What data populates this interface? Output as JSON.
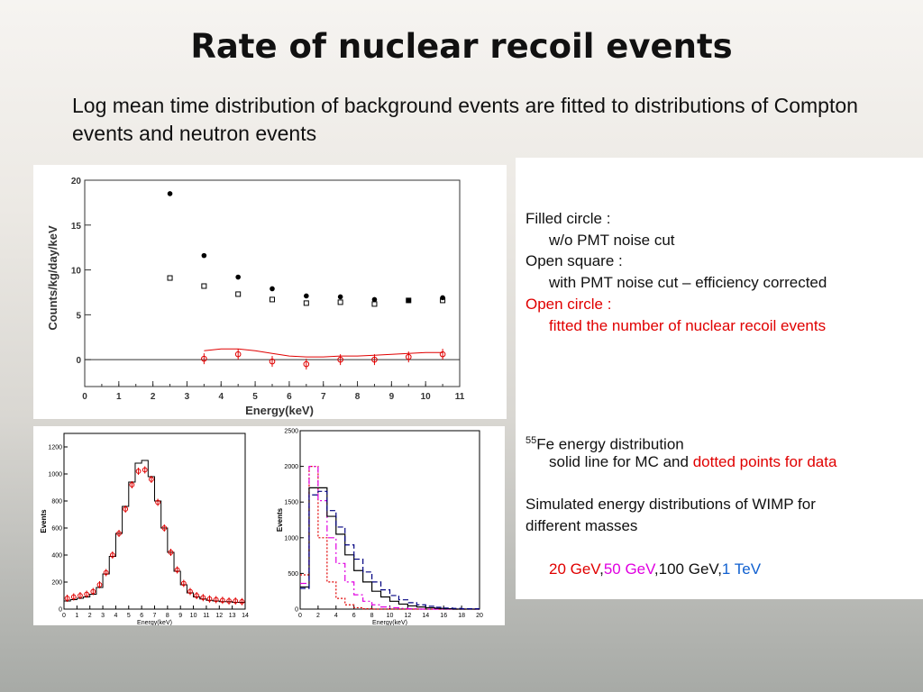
{
  "slide": {
    "title": "Rate of nuclear recoil events",
    "subtitle": "Log mean time distribution of background events are fitted to distributions of Compton events and neutron events"
  },
  "legend_text": {
    "line1": "Filled  circle :",
    "line2": "w/o PMT noise cut",
    "line3": "Open square :",
    "line4": "with PMT noise cut – efficiency corrected",
    "line5": "Open circle :",
    "line6": "fitted the number of nuclear recoil events",
    "fe_sup": "55",
    "fe_line": "Fe energy distribution",
    "mc_line_a": "solid line for MC and ",
    "mc_line_b": "dotted points for data",
    "wimp_line1": "Simulated energy distributions of WIMP for",
    "wimp_line2": "different masses",
    "mass_20": "20 GeV",
    "comma1": ",",
    "mass_50": "50 GeV",
    "mass_100": ",100 GeV,",
    "mass_1tev": "1 TeV"
  },
  "colors": {
    "red": "#e00000",
    "magenta": "#e000e0",
    "blue": "#1060d0",
    "navy": "#000080"
  },
  "chart_data": [
    {
      "type": "scatter",
      "xlabel": "Energy(keV)",
      "ylabel": "Counts/kg/day/keV",
      "xlim": [
        0,
        11
      ],
      "ylim": [
        -3,
        20
      ],
      "xticks": [
        0,
        1,
        2,
        3,
        4,
        5,
        6,
        7,
        8,
        9,
        10,
        11
      ],
      "yticks": [
        0,
        5,
        10,
        15,
        20
      ],
      "series": [
        {
          "name": "Filled circle",
          "marker": "filled-circle",
          "x": [
            2.5,
            3.5,
            4.5,
            5.5,
            6.5,
            7.5,
            8.5,
            9.5,
            10.5
          ],
          "y": [
            18.5,
            11.6,
            9.2,
            7.9,
            7.1,
            7.0,
            6.7,
            6.6,
            6.9
          ]
        },
        {
          "name": "Open square",
          "marker": "open-square",
          "x": [
            2.5,
            3.5,
            4.5,
            5.5,
            6.5,
            7.5,
            8.5,
            9.5,
            10.5
          ],
          "y": [
            9.1,
            8.2,
            7.3,
            6.7,
            6.3,
            6.4,
            6.2,
            6.6,
            6.6
          ]
        },
        {
          "name": "Open circle",
          "marker": "open-circle",
          "x": [
            3.5,
            4.5,
            5.5,
            6.5,
            7.5,
            8.5,
            9.5,
            10.5
          ],
          "y": [
            0.1,
            0.6,
            -0.2,
            -0.5,
            0.0,
            0.0,
            0.3,
            0.6
          ]
        }
      ],
      "curve": {
        "x": [
          3.5,
          4.0,
          4.5,
          5.0,
          5.5,
          6.0,
          6.5,
          7.0,
          7.5,
          8.0,
          8.5,
          9.0,
          9.5,
          10.0,
          10.5
        ],
        "y": [
          1.0,
          1.2,
          1.2,
          1.0,
          0.7,
          0.4,
          0.3,
          0.3,
          0.4,
          0.4,
          0.5,
          0.6,
          0.7,
          0.8,
          0.8
        ]
      }
    },
    {
      "type": "line",
      "xlabel": "Energy(keV)",
      "ylabel": "Events",
      "xlim": [
        0,
        14
      ],
      "ylim": [
        0,
        1300
      ],
      "xticks": [
        0,
        1,
        2,
        3,
        4,
        5,
        6,
        7,
        8,
        9,
        10,
        11,
        12,
        13,
        14
      ],
      "yticks": [
        0,
        200,
        400,
        600,
        800,
        1000,
        1200
      ],
      "mc": {
        "x": [
          0.25,
          0.75,
          1.25,
          1.75,
          2.25,
          2.75,
          3.25,
          3.75,
          4.25,
          4.75,
          5.25,
          5.75,
          6.25,
          6.75,
          7.25,
          7.75,
          8.25,
          8.75,
          9.25,
          9.75,
          10.25,
          10.75,
          11.25,
          11.75,
          12.25,
          12.75,
          13.25,
          13.75
        ],
        "y": [
          60,
          70,
          80,
          90,
          110,
          160,
          260,
          390,
          560,
          760,
          940,
          1080,
          1100,
          980,
          800,
          600,
          420,
          280,
          180,
          120,
          90,
          75,
          65,
          60,
          55,
          55,
          50,
          50
        ]
      },
      "data": {
        "x": [
          0.25,
          0.75,
          1.25,
          1.75,
          2.25,
          2.75,
          3.25,
          3.75,
          4.25,
          4.75,
          5.25,
          5.75,
          6.25,
          6.75,
          7.25,
          7.75,
          8.25,
          8.75,
          9.25,
          9.75,
          10.25,
          10.75,
          11.25,
          11.75,
          12.25,
          12.75,
          13.25,
          13.75
        ],
        "y": [
          80,
          90,
          100,
          110,
          130,
          180,
          270,
          400,
          560,
          740,
          920,
          1020,
          1030,
          960,
          790,
          600,
          420,
          290,
          190,
          130,
          100,
          85,
          75,
          70,
          65,
          60,
          60,
          55
        ]
      }
    },
    {
      "type": "line",
      "xlabel": "Energy(keV)",
      "ylabel": "Events",
      "xlim": [
        0,
        20
      ],
      "ylim": [
        0,
        2500
      ],
      "xticks": [
        0,
        2,
        4,
        6,
        8,
        10,
        12,
        14,
        16,
        18,
        20
      ],
      "yticks": [
        0,
        500,
        1000,
        1500,
        2000,
        2500
      ],
      "x_edges": [
        0,
        1,
        2,
        3,
        4,
        5,
        6,
        7,
        8,
        9,
        10,
        11,
        12,
        13,
        14,
        15,
        16,
        17,
        18,
        19,
        20
      ],
      "series": [
        {
          "name": "20 GeV",
          "color": "#e00000",
          "dash": "2,2",
          "values": [
            480,
            2000,
            1000,
            380,
            150,
            60,
            20,
            5,
            0,
            0,
            0,
            0,
            0,
            0,
            0,
            0,
            0,
            0,
            0,
            0
          ]
        },
        {
          "name": "50 GeV",
          "color": "#e000e0",
          "dash": "7,3,2,3",
          "values": [
            360,
            2000,
            1520,
            1000,
            640,
            380,
            200,
            110,
            60,
            30,
            20,
            10,
            5,
            0,
            0,
            0,
            0,
            0,
            0,
            0
          ]
        },
        {
          "name": "100 GeV",
          "color": "#000000",
          "dash": "",
          "values": [
            310,
            1700,
            1700,
            1300,
            1050,
            760,
            540,
            380,
            250,
            170,
            110,
            70,
            45,
            30,
            20,
            10,
            5,
            0,
            0,
            0
          ]
        },
        {
          "name": "1 TeV",
          "color": "#000080",
          "dash": "6,3",
          "values": [
            290,
            1600,
            1650,
            1380,
            1150,
            900,
            700,
            520,
            380,
            270,
            190,
            130,
            90,
            60,
            40,
            25,
            15,
            10,
            5,
            5
          ]
        }
      ]
    }
  ]
}
